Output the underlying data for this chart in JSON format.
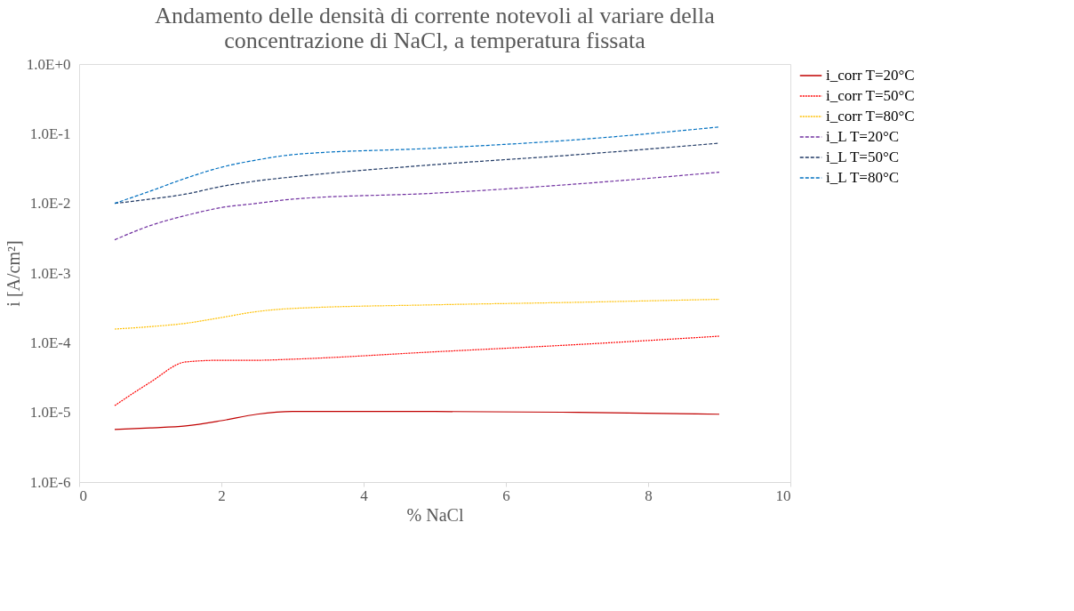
{
  "chart_data": {
    "type": "line",
    "title": "Andamento delle densità di corrente notevoli al variare della\nconcentrazione di NaCl, a temperatura fissata",
    "xlabel": "% NaCl",
    "ylabel": "i [A/cm²]",
    "log": true,
    "grid": false,
    "legend": "right",
    "marker": "none",
    "xlim": [
      0,
      10
    ],
    "xticks": [
      0,
      2,
      4,
      6,
      8,
      10
    ],
    "ylim": [
      1e-06,
      1
    ],
    "yticks": [
      {
        "value": 1e-06,
        "label": "1.0E-6"
      },
      {
        "value": 1e-05,
        "label": "1.0E-5"
      },
      {
        "value": 0.0001,
        "label": "1.0E-4"
      },
      {
        "value": 0.001,
        "label": "1.0E-3"
      },
      {
        "value": 0.01,
        "label": "1.0E-2"
      },
      {
        "value": 0.1,
        "label": "1.0E-1"
      },
      {
        "value": 1,
        "label": "1.0E+0"
      }
    ],
    "x": [
      0.5,
      1,
      1.5,
      2,
      2.5,
      3,
      5,
      7,
      9
    ],
    "series": [
      {
        "name": "i_corr T=20°C",
        "color": "#c00000",
        "line_style": "solid",
        "values": [
          5.7e-06,
          6e-06,
          6.4e-06,
          7.6e-06,
          9.4e-06,
          1.03e-05,
          1.03e-05,
          1e-05,
          9.4e-06
        ]
      },
      {
        "name": "i_corr T=50°C",
        "color": "#ff0000",
        "line_style": "dotted",
        "values": [
          1.25e-05,
          2.7e-05,
          5.3e-05,
          5.6e-05,
          5.6e-05,
          5.8e-05,
          7.4e-05,
          9.4e-05,
          0.000124
        ]
      },
      {
        "name": "i_corr T=80°C",
        "color": "#ffc000",
        "line_style": "dotted",
        "values": [
          0.000157,
          0.00017,
          0.00019,
          0.00023,
          0.00028,
          0.00031,
          0.00035,
          0.00038,
          0.00042
        ]
      },
      {
        "name": "i_L T=20°C",
        "color": "#7030a0",
        "line_style": "dashed",
        "values": [
          0.003,
          0.0048,
          0.0067,
          0.0087,
          0.01,
          0.0115,
          0.014,
          0.019,
          0.028
        ]
      },
      {
        "name": "i_L T=50°C",
        "color": "#1f3864",
        "line_style": "dashed",
        "values": [
          0.01,
          0.0115,
          0.0136,
          0.0175,
          0.021,
          0.024,
          0.036,
          0.05,
          0.073
        ]
      },
      {
        "name": "i_L T=80°C",
        "color": "#0070c0",
        "line_style": "dashed",
        "values": [
          0.01,
          0.015,
          0.023,
          0.033,
          0.042,
          0.05,
          0.062,
          0.082,
          0.125
        ]
      }
    ]
  }
}
